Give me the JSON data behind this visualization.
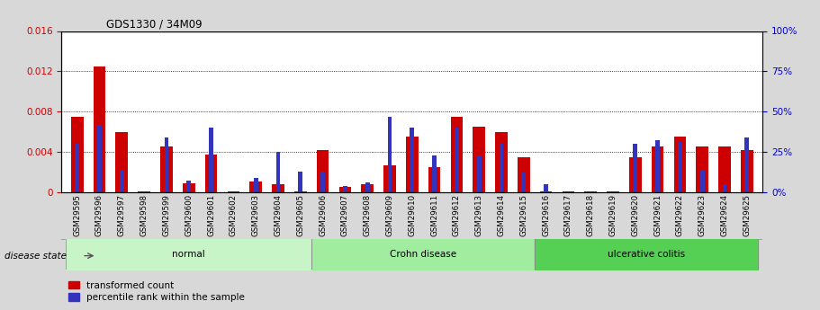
{
  "title": "GDS1330 / 34M09",
  "samples": [
    "GSM29595",
    "GSM29596",
    "GSM29597",
    "GSM29598",
    "GSM29599",
    "GSM29600",
    "GSM29601",
    "GSM29602",
    "GSM29603",
    "GSM29604",
    "GSM29605",
    "GSM29606",
    "GSM29607",
    "GSM29608",
    "GSM29609",
    "GSM29610",
    "GSM29611",
    "GSM29612",
    "GSM29613",
    "GSM29614",
    "GSM29615",
    "GSM29616",
    "GSM29617",
    "GSM29618",
    "GSM29619",
    "GSM29620",
    "GSM29621",
    "GSM29622",
    "GSM29623",
    "GSM29624",
    "GSM29625"
  ],
  "red_values": [
    0.0075,
    0.0125,
    0.006,
    0.0001,
    0.0045,
    0.00085,
    0.0037,
    0.0001,
    0.00105,
    0.00075,
    0.0001,
    0.0042,
    0.0005,
    0.00075,
    0.0027,
    0.0055,
    0.0025,
    0.0075,
    0.0065,
    0.006,
    0.0035,
    0.0001,
    0.0001,
    0.0001,
    0.0001,
    0.0035,
    0.0045,
    0.0055,
    0.0045,
    0.0045,
    0.0042
  ],
  "blue_percentiles": [
    30,
    42,
    14,
    0,
    34,
    7,
    40,
    0,
    9,
    25,
    13,
    13,
    4,
    6,
    47,
    40,
    23,
    40,
    23,
    30,
    12,
    5,
    0,
    0,
    0,
    30,
    32,
    31,
    14,
    5,
    34
  ],
  "group_spans": [
    [
      0,
      10,
      "#c8f5c8",
      "normal"
    ],
    [
      11,
      20,
      "#a0eda0",
      "Crohn disease"
    ],
    [
      21,
      30,
      "#55d055",
      "ulcerative colitis"
    ]
  ],
  "ylim_left": [
    0,
    0.016
  ],
  "ylim_right": [
    0,
    100
  ],
  "yticks_left": [
    0,
    0.004,
    0.008,
    0.012,
    0.016
  ],
  "yticks_right": [
    0,
    25,
    50,
    75,
    100
  ],
  "red_color": "#cc0000",
  "blue_color": "#3333bb",
  "bg_color": "#d8d8d8",
  "plot_bg_color": "#ffffff",
  "legend_red": "transformed count",
  "legend_blue": "percentile rank within the sample",
  "disease_state_label": "disease state",
  "left_axis_color": "#cc0000",
  "right_axis_color": "#0000cc"
}
